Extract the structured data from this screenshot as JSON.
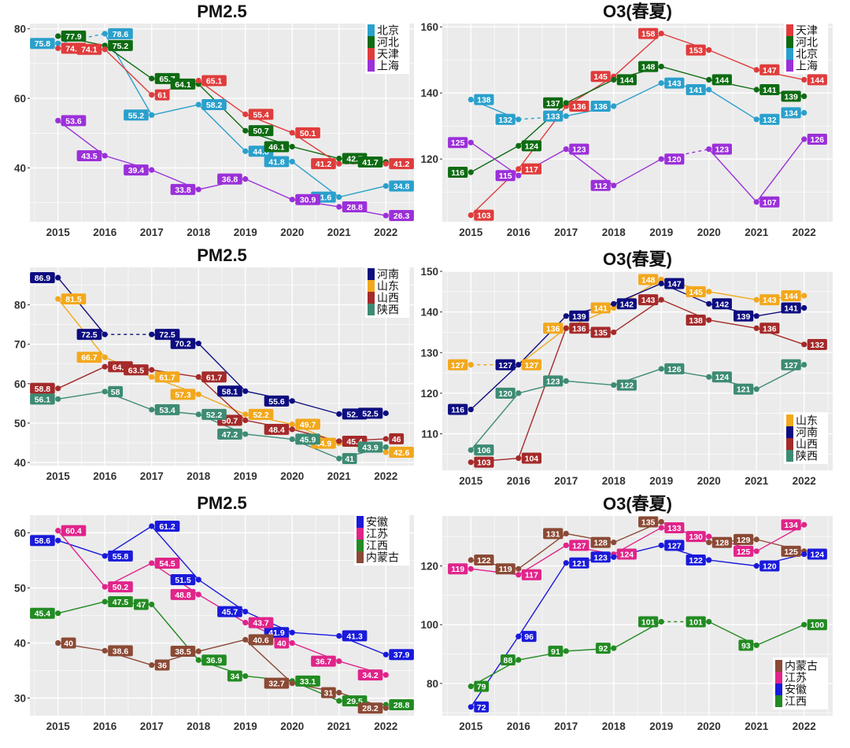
{
  "chart_data": [
    {
      "type": "line",
      "title": "PM2.5",
      "x": [
        "2015",
        "2016",
        "2017",
        "2018",
        "2019",
        "2020",
        "2021",
        "2022"
      ],
      "xlabel": "",
      "ylabel": "",
      "ylim": [
        24.5,
        81.5
      ],
      "yticks": [
        40,
        60,
        80
      ],
      "grid": true,
      "legend": "top-right",
      "legend_order": [
        "北京",
        "河北",
        "天津",
        "上海"
      ],
      "series": [
        {
          "name": "北京",
          "color": "#2aa0cc",
          "values": [
            75.8,
            78.6,
            55.2,
            58.2,
            44.8,
            41.8,
            31.6,
            34.8
          ],
          "dashed_segments": [
            0
          ]
        },
        {
          "name": "河北",
          "color": "#0e6b12",
          "values": [
            77.9,
            75.2,
            65.7,
            64.1,
            50.7,
            46.1,
            42.7,
            41.7
          ],
          "dashed_segments": []
        },
        {
          "name": "天津",
          "color": "#e03c3c",
          "values": [
            74.4,
            74.1,
            61,
            65.1,
            55.4,
            50.1,
            41.2,
            41.2
          ],
          "dashed_segments": [
            6
          ]
        },
        {
          "name": "上海",
          "color": "#9b30d9",
          "values": [
            53.6,
            43.5,
            39.4,
            33.8,
            36.8,
            30.9,
            28.8,
            26.3
          ],
          "dashed_segments": []
        }
      ]
    },
    {
      "type": "line",
      "title": "O3(春夏)",
      "x": [
        "2015",
        "2016",
        "2017",
        "2018",
        "2019",
        "2020",
        "2021",
        "2022"
      ],
      "xlabel": "",
      "ylabel": "",
      "ylim": [
        101,
        161
      ],
      "yticks": [
        120,
        140,
        160
      ],
      "grid": true,
      "legend": "top-right",
      "legend_order": [
        "天津",
        "河北",
        "北京",
        "上海"
      ],
      "series": [
        {
          "name": "天津",
          "color": "#e03c3c",
          "values": [
            103,
            117,
            136,
            145,
            158,
            153,
            147,
            144
          ],
          "dashed_segments": []
        },
        {
          "name": "河北",
          "color": "#0e6b12",
          "values": [
            116,
            124,
            137,
            144,
            148,
            144,
            141,
            139
          ],
          "dashed_segments": []
        },
        {
          "name": "北京",
          "color": "#2aa0cc",
          "values": [
            138,
            132,
            133,
            136,
            143,
            141,
            132,
            134
          ],
          "dashed_segments": [
            1,
            6
          ]
        },
        {
          "name": "上海",
          "color": "#9b30d9",
          "values": [
            125,
            115,
            123,
            112,
            120,
            123,
            107,
            126
          ],
          "dashed_segments": [
            4
          ]
        }
      ]
    },
    {
      "type": "line",
      "title": "PM2.5",
      "x": [
        "2015",
        "2016",
        "2017",
        "2018",
        "2019",
        "2020",
        "2021",
        "2022"
      ],
      "xlabel": "",
      "ylabel": "",
      "ylim": [
        39.2,
        89.5
      ],
      "yticks": [
        40,
        50,
        60,
        70,
        80
      ],
      "grid": true,
      "legend": "top-right",
      "legend_order": [
        "河南",
        "山东",
        "山西",
        "陕西"
      ],
      "series": [
        {
          "name": "河南",
          "color": "#0d0d80",
          "values": [
            86.9,
            72.5,
            72.5,
            70.2,
            58.1,
            55.6,
            52.3,
            52.5
          ],
          "dashed_segments": [
            1,
            6
          ]
        },
        {
          "name": "山东",
          "color": "#f2a81d",
          "values": [
            81.5,
            66.7,
            61.7,
            57.3,
            52.2,
            49.7,
            44.9,
            42.6
          ],
          "dashed_segments": []
        },
        {
          "name": "山西",
          "color": "#a52a2a",
          "values": [
            58.8,
            64.3,
            63.5,
            61.7,
            50.7,
            48.4,
            45.4,
            46
          ],
          "dashed_segments": []
        },
        {
          "name": "陕西",
          "color": "#3d8b74",
          "values": [
            56.1,
            58,
            53.4,
            52.2,
            47.2,
            45.9,
            41,
            43.9
          ],
          "dashed_segments": []
        }
      ]
    },
    {
      "type": "line",
      "title": "O3(春夏)",
      "x": [
        "2015",
        "2016",
        "2017",
        "2018",
        "2019",
        "2020",
        "2021",
        "2022"
      ],
      "xlabel": "",
      "ylabel": "",
      "ylim": [
        101,
        150
      ],
      "yticks": [
        110,
        120,
        130,
        140,
        150
      ],
      "grid": true,
      "legend": "bottom-right",
      "legend_order": [
        "山东",
        "河南",
        "山西",
        "陕西"
      ],
      "series": [
        {
          "name": "山东",
          "color": "#f2a81d",
          "values": [
            127,
            127,
            136,
            141,
            148,
            145,
            143,
            144
          ],
          "dashed_segments": [
            0
          ]
        },
        {
          "name": "河南",
          "color": "#0d0d80",
          "values": [
            116,
            127,
            139,
            142,
            147,
            142,
            139,
            141
          ],
          "dashed_segments": []
        },
        {
          "name": "山西",
          "color": "#a52a2a",
          "values": [
            103,
            104,
            136,
            135,
            143,
            138,
            136,
            132
          ],
          "dashed_segments": []
        },
        {
          "name": "陕西",
          "color": "#3d8b74",
          "values": [
            106,
            120,
            123,
            122,
            126,
            124,
            121,
            127
          ],
          "dashed_segments": []
        }
      ]
    },
    {
      "type": "line",
      "title": "PM2.5",
      "x": [
        "2015",
        "2016",
        "2017",
        "2018",
        "2019",
        "2020",
        "2021",
        "2022"
      ],
      "xlabel": "",
      "ylabel": "",
      "ylim": [
        26.8,
        63.2
      ],
      "yticks": [
        30,
        40,
        50,
        60
      ],
      "grid": true,
      "legend": "top-right",
      "legend_order": [
        "安徽",
        "江苏",
        "江西",
        "内蒙古"
      ],
      "series": [
        {
          "name": "安徽",
          "color": "#1a1adb",
          "values": [
            58.6,
            55.8,
            61.2,
            51.5,
            45.7,
            41.9,
            41.3,
            37.9
          ],
          "dashed_segments": []
        },
        {
          "name": "江苏",
          "color": "#e0248a",
          "values": [
            60.4,
            50.2,
            54.5,
            48.8,
            43.7,
            40,
            36.7,
            34.2
          ],
          "dashed_segments": []
        },
        {
          "name": "江西",
          "color": "#228b22",
          "values": [
            45.4,
            47.5,
            47,
            36.9,
            34,
            33.1,
            29.5,
            28.8
          ],
          "dashed_segments": []
        },
        {
          "name": "内蒙古",
          "color": "#8b4a35",
          "values": [
            40,
            38.6,
            36,
            38.5,
            40.6,
            32.7,
            31,
            28.2
          ],
          "dashed_segments": []
        }
      ]
    },
    {
      "type": "line",
      "title": "O3(春夏)",
      "x": [
        "2015",
        "2016",
        "2017",
        "2018",
        "2019",
        "2020",
        "2021",
        "2022"
      ],
      "xlabel": "",
      "ylabel": "",
      "ylim": [
        69,
        137
      ],
      "yticks": [
        80,
        100,
        120
      ],
      "grid": true,
      "legend": "bottom-right",
      "legend_order": [
        "内蒙古",
        "江苏",
        "安徽",
        "江西"
      ],
      "series": [
        {
          "name": "内蒙古",
          "color": "#8b4a35",
          "values": [
            122,
            119,
            131,
            128,
            135,
            128,
            129,
            125
          ],
          "dashed_segments": []
        },
        {
          "name": "江苏",
          "color": "#e0248a",
          "values": [
            119,
            117,
            127,
            124,
            133,
            130,
            125,
            134
          ],
          "dashed_segments": []
        },
        {
          "name": "安徽",
          "color": "#1a1adb",
          "values": [
            72,
            96,
            121,
            123,
            127,
            122,
            120,
            124
          ],
          "dashed_segments": []
        },
        {
          "name": "江西",
          "color": "#228b22",
          "values": [
            79,
            88,
            91,
            92,
            101,
            101,
            93,
            100
          ],
          "dashed_segments": [
            4
          ]
        }
      ]
    }
  ]
}
